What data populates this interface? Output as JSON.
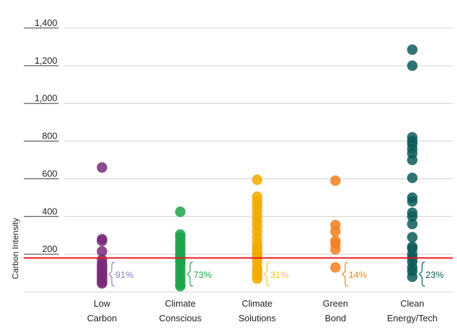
{
  "chart_data": {
    "type": "scatter",
    "ylabel": "Carbon Intensity",
    "ylim": [
      0,
      1400
    ],
    "yticks": [
      "200",
      "400",
      "600",
      "800",
      "1,000",
      "1,200",
      "1,400"
    ],
    "grid": true,
    "reference_line": {
      "value": 180,
      "color": "#e8141c"
    },
    "categories": [
      {
        "label_line1": "Low",
        "label_line2": "Carbon",
        "color": "#7b2a7a",
        "below_pct": "91%",
        "pct_color": "#8e7bc0",
        "values": [
          660,
          280,
          270,
          215,
          170,
          150,
          140,
          130,
          120,
          110,
          100,
          90,
          80,
          70,
          60,
          50,
          45
        ]
      },
      {
        "label_line1": "Climate",
        "label_line2": "Conscious",
        "color": "#1fa34a",
        "below_pct": "73%",
        "pct_color": "#1fa34a",
        "values": [
          425,
          305,
          290,
          270,
          250,
          235,
          220,
          200,
          185,
          170,
          160,
          140,
          120,
          100,
          80,
          60,
          40,
          30
        ]
      },
      {
        "label_line1": "Climate",
        "label_line2": "Solutions",
        "color": "#f2a900",
        "below_pct": "31%",
        "pct_color": "#f2c12e",
        "values": [
          595,
          505,
          480,
          455,
          430,
          400,
          375,
          350,
          320,
          290,
          260,
          240,
          220,
          200,
          180,
          160,
          130,
          110,
          90,
          70
        ]
      },
      {
        "label_line1": "Green",
        "label_line2": "Bond",
        "color": "#f07f1e",
        "below_pct": "14%",
        "pct_color": "#f07f1e",
        "values": [
          590,
          355,
          320,
          270,
          255,
          225,
          130
        ]
      },
      {
        "label_line1": "Clean",
        "label_line2": "Energy/Tech",
        "color": "#0d5c5a",
        "below_pct": "23%",
        "pct_color": "#0d5c5a",
        "values": [
          1285,
          1200,
          820,
          800,
          785,
          760,
          735,
          700,
          605,
          500,
          480,
          420,
          400,
          360,
          290,
          240,
          230,
          200,
          180,
          160,
          130,
          110,
          80
        ]
      }
    ]
  }
}
